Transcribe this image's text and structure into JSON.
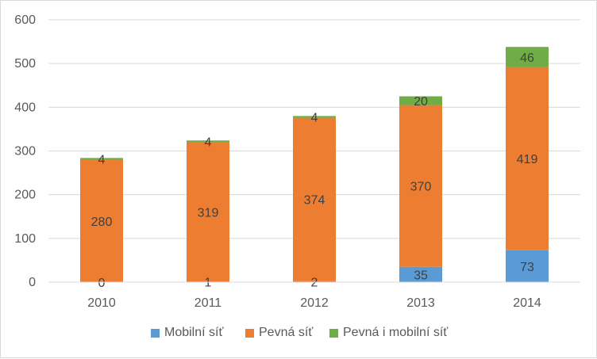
{
  "chart_data": {
    "type": "bar",
    "stacked": true,
    "categories": [
      "2010",
      "2011",
      "2012",
      "2013",
      "2014"
    ],
    "series": [
      {
        "name": "Mobilní síť",
        "color": "#5b9bd5",
        "values": [
          0,
          1,
          2,
          35,
          73
        ]
      },
      {
        "name": "Pevná síť",
        "color": "#ed7d31",
        "values": [
          280,
          319,
          374,
          370,
          419
        ]
      },
      {
        "name": "Pevná i mobilní síť",
        "color": "#70ad47",
        "values": [
          4,
          4,
          4,
          20,
          46
        ]
      }
    ],
    "ylim": [
      0,
      600
    ],
    "yticks": [
      "0",
      "100",
      "200",
      "300",
      "400",
      "500",
      "600"
    ],
    "grid": true,
    "legend_position": "bottom"
  }
}
